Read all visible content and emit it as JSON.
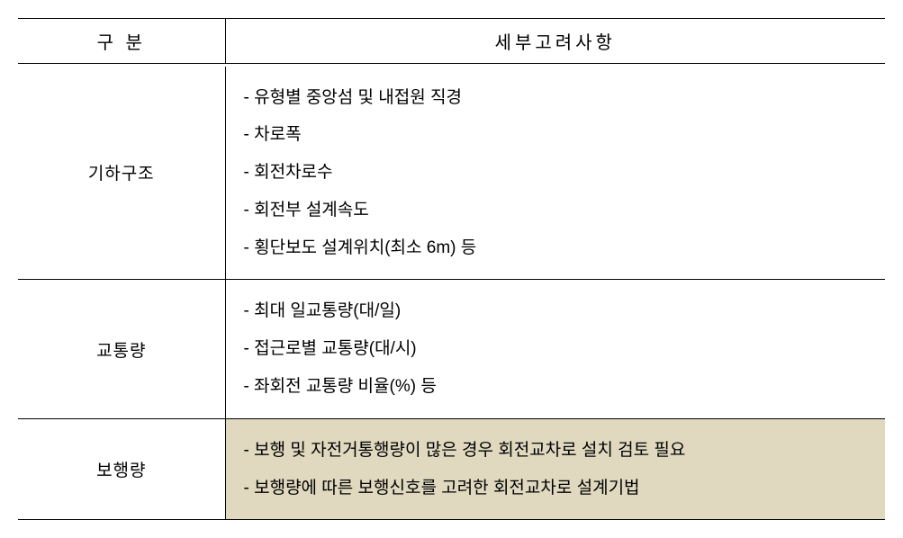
{
  "table": {
    "headers": {
      "category": "구 분",
      "details": "세부고려사항"
    },
    "rows": [
      {
        "category": "기하구조",
        "highlighted": false,
        "items": [
          "- 유형별 중앙섬 및 내접원 직경",
          "- 차로폭",
          "- 회전차로수",
          "- 회전부 설계속도",
          "- 횡단보도 설계위치(최소 6m) 등"
        ]
      },
      {
        "category": "교통량",
        "highlighted": false,
        "items": [
          "- 최대 일교통량(대/일)",
          "- 접근로별 교통량(대/시)",
          "- 좌회전 교통량 비율(%) 등"
        ]
      },
      {
        "category": "보행량",
        "highlighted": true,
        "items": [
          "- 보행 및 자전거통행량이 많은 경우 회전교차로 설치 검토 필요",
          "- 보행량에 따른 보행신호를 고려한 회전교차로 설계기법"
        ]
      }
    ],
    "colors": {
      "highlight_bg": "#e0d9c0",
      "border": "#000000",
      "text": "#000000",
      "background": "#ffffff"
    }
  }
}
